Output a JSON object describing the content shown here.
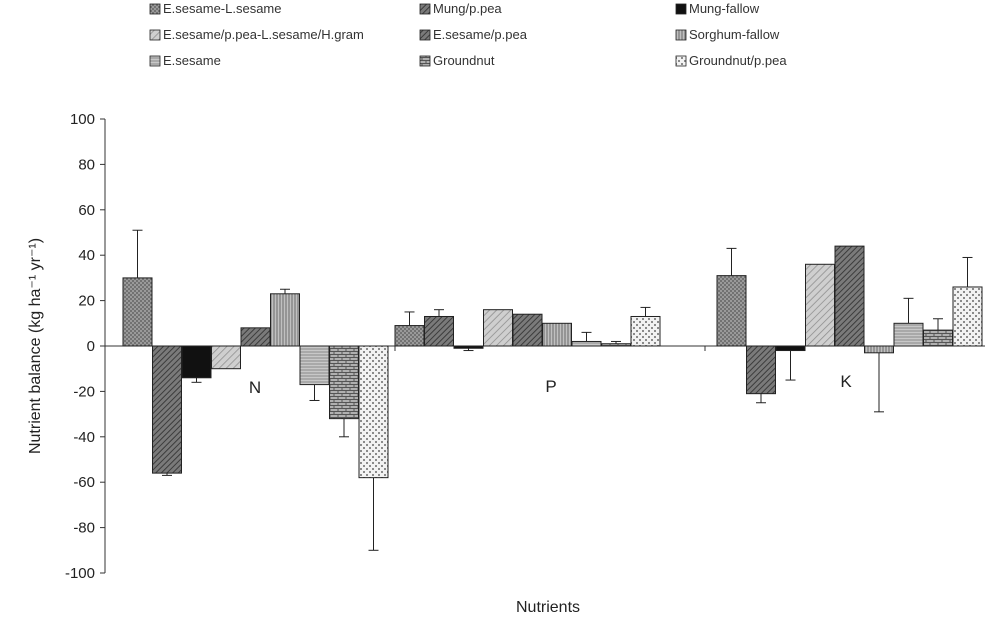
{
  "chart_data": {
    "type": "bar",
    "title": "",
    "xlabel": "Nutrients",
    "ylabel": "Nutrient balance (kg ha⁻¹ yr⁻¹)",
    "ylim": [
      -100,
      100
    ],
    "yticks": [
      100,
      80,
      60,
      40,
      20,
      0,
      -20,
      -40,
      -60,
      -80,
      -100
    ],
    "categories": [
      "N",
      "P",
      "K"
    ],
    "grid": false,
    "legend_position": "top",
    "series": [
      {
        "name": "E.sesame-L.sesame",
        "values": [
          30,
          9,
          31
        ],
        "errors": [
          21,
          6,
          12
        ],
        "color": "#8a8a8a",
        "pattern": "dots-fine"
      },
      {
        "name": "Mung/p.pea",
        "values": [
          -56,
          13,
          -21
        ],
        "errors": [
          1,
          3,
          4
        ],
        "color": "#6e6e6e",
        "pattern": "diag-dense"
      },
      {
        "name": "Mung-fallow",
        "values": [
          -14,
          -1,
          -2
        ],
        "errors": [
          2,
          1,
          13
        ],
        "color": "#111111",
        "pattern": "solid"
      },
      {
        "name": "E.sesame/p.pea-L.sesame/H.gram",
        "values": [
          -10,
          16,
          36
        ],
        "errors": [
          0,
          0,
          0
        ],
        "color": "#b4b4b4",
        "pattern": "diag-light"
      },
      {
        "name": "E.sesame/p.pea",
        "values": [
          8,
          14,
          44
        ],
        "errors": [
          0,
          0,
          0
        ],
        "color": "#7a7a7a",
        "pattern": "diag-dense"
      },
      {
        "name": "Sorghum-fallow",
        "values": [
          23,
          10,
          -3
        ],
        "errors": [
          2,
          0,
          26
        ],
        "color": "#9a9a9a",
        "pattern": "vlines"
      },
      {
        "name": "E.sesame",
        "values": [
          -17,
          2,
          10
        ],
        "errors": [
          7,
          4,
          11
        ],
        "color": "#a8a8a8",
        "pattern": "hlines"
      },
      {
        "name": "Groundnut",
        "values": [
          -32,
          1,
          7
        ],
        "errors": [
          8,
          1,
          5
        ],
        "color": "#909090",
        "pattern": "brick"
      },
      {
        "name": "Groundnut/p.pea",
        "values": [
          -58,
          13,
          26
        ],
        "errors": [
          32,
          4,
          13
        ],
        "color": "#e0e0e0",
        "pattern": "checker"
      }
    ],
    "legend": [
      "E.sesame-L.sesame",
      "Mung/p.pea",
      "Mung-fallow",
      "E.sesame/p.pea-L.sesame/H.gram",
      "E.sesame/p.pea",
      "Sorghum-fallow",
      "E.sesame",
      "Groundnut",
      "Groundnut/p.pea"
    ]
  }
}
